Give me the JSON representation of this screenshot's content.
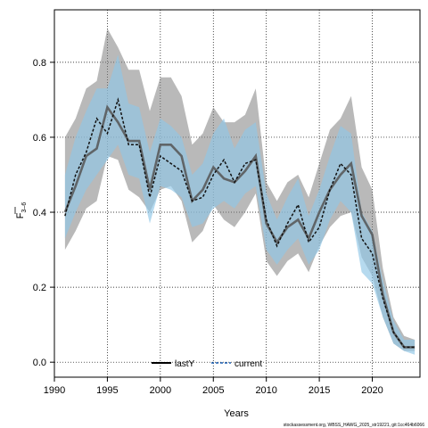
{
  "chart_data": {
    "type": "line",
    "title": "",
    "xlabel": "Years",
    "ylabel_main": "F",
    "ylabel_sub": "3–6",
    "xlim": [
      1990,
      2024.5
    ],
    "ylim": [
      -0.04,
      0.94
    ],
    "x_ticks": [
      1990,
      1995,
      2000,
      2005,
      2010,
      2015,
      2020
    ],
    "y_ticks": [
      "0.0",
      "0.2",
      "0.4",
      "0.6",
      "0.8"
    ],
    "y_tick_values": [
      0.0,
      0.2,
      0.4,
      0.6,
      0.8
    ],
    "grid": true,
    "legend_position": "bottom-center",
    "legend": [
      {
        "label": "lastY",
        "style": "solid",
        "color": "#000000"
      },
      {
        "label": "current",
        "style": "dashed",
        "color": "#1a5fb4"
      }
    ],
    "years": [
      1991,
      1992,
      1993,
      1994,
      1995,
      1996,
      1997,
      1998,
      1999,
      2000,
      2001,
      2002,
      2003,
      2004,
      2005,
      2006,
      2007,
      2008,
      2009,
      2010,
      2011,
      2012,
      2013,
      2014,
      2015,
      2016,
      2017,
      2018,
      2019,
      2020,
      2021,
      2022,
      2023,
      2024
    ],
    "series": [
      {
        "name": "lastY",
        "values": [
          0.4,
          0.47,
          0.55,
          0.57,
          0.68,
          0.64,
          0.59,
          0.59,
          0.46,
          0.58,
          0.58,
          0.55,
          0.43,
          0.46,
          0.52,
          0.49,
          0.48,
          0.51,
          0.55,
          0.37,
          0.32,
          0.36,
          0.38,
          0.33,
          0.4,
          0.46,
          0.5,
          0.53,
          0.39,
          0.34,
          0.18,
          0.08,
          0.04,
          0.04
        ],
        "lower": [
          0.3,
          0.35,
          0.41,
          0.43,
          0.55,
          0.54,
          0.46,
          0.44,
          0.4,
          0.46,
          0.47,
          0.43,
          0.32,
          0.35,
          0.42,
          0.38,
          0.36,
          0.4,
          0.45,
          0.27,
          0.23,
          0.27,
          0.29,
          0.24,
          0.31,
          0.36,
          0.39,
          0.4,
          0.28,
          0.23,
          0.12,
          0.05,
          0.03,
          0.03
        ],
        "upper": [
          0.6,
          0.65,
          0.73,
          0.75,
          0.89,
          0.84,
          0.78,
          0.78,
          0.67,
          0.76,
          0.76,
          0.71,
          0.58,
          0.61,
          0.68,
          0.64,
          0.64,
          0.66,
          0.73,
          0.48,
          0.43,
          0.48,
          0.5,
          0.44,
          0.53,
          0.62,
          0.65,
          0.71,
          0.52,
          0.46,
          0.25,
          0.12,
          0.07,
          0.06
        ]
      },
      {
        "name": "current",
        "values": [
          0.39,
          0.5,
          0.56,
          0.65,
          0.61,
          0.7,
          0.58,
          0.58,
          0.44,
          0.55,
          0.53,
          0.51,
          0.43,
          0.44,
          0.5,
          0.54,
          0.48,
          0.53,
          0.54,
          0.38,
          0.31,
          0.37,
          0.42,
          0.32,
          0.36,
          0.46,
          0.53,
          0.5,
          0.33,
          0.29,
          0.17,
          0.08,
          0.04,
          0.04
        ],
        "lower": [
          0.33,
          0.4,
          0.46,
          0.5,
          0.54,
          0.58,
          0.5,
          0.49,
          0.37,
          0.47,
          0.46,
          0.44,
          0.36,
          0.37,
          0.41,
          0.43,
          0.41,
          0.45,
          0.47,
          0.3,
          0.26,
          0.3,
          0.33,
          0.26,
          0.3,
          0.38,
          0.43,
          0.4,
          0.24,
          0.21,
          0.12,
          0.05,
          0.03,
          0.02
        ],
        "upper": [
          0.5,
          0.6,
          0.67,
          0.73,
          0.73,
          0.82,
          0.69,
          0.68,
          0.56,
          0.65,
          0.63,
          0.6,
          0.5,
          0.53,
          0.61,
          0.65,
          0.57,
          0.62,
          0.64,
          0.45,
          0.38,
          0.44,
          0.49,
          0.39,
          0.46,
          0.55,
          0.63,
          0.61,
          0.4,
          0.35,
          0.22,
          0.11,
          0.06,
          0.06
        ]
      }
    ],
    "footnote": "stockassessment.org, WBSS_HAWG_2025_str19221, git:1cc464b6066"
  }
}
